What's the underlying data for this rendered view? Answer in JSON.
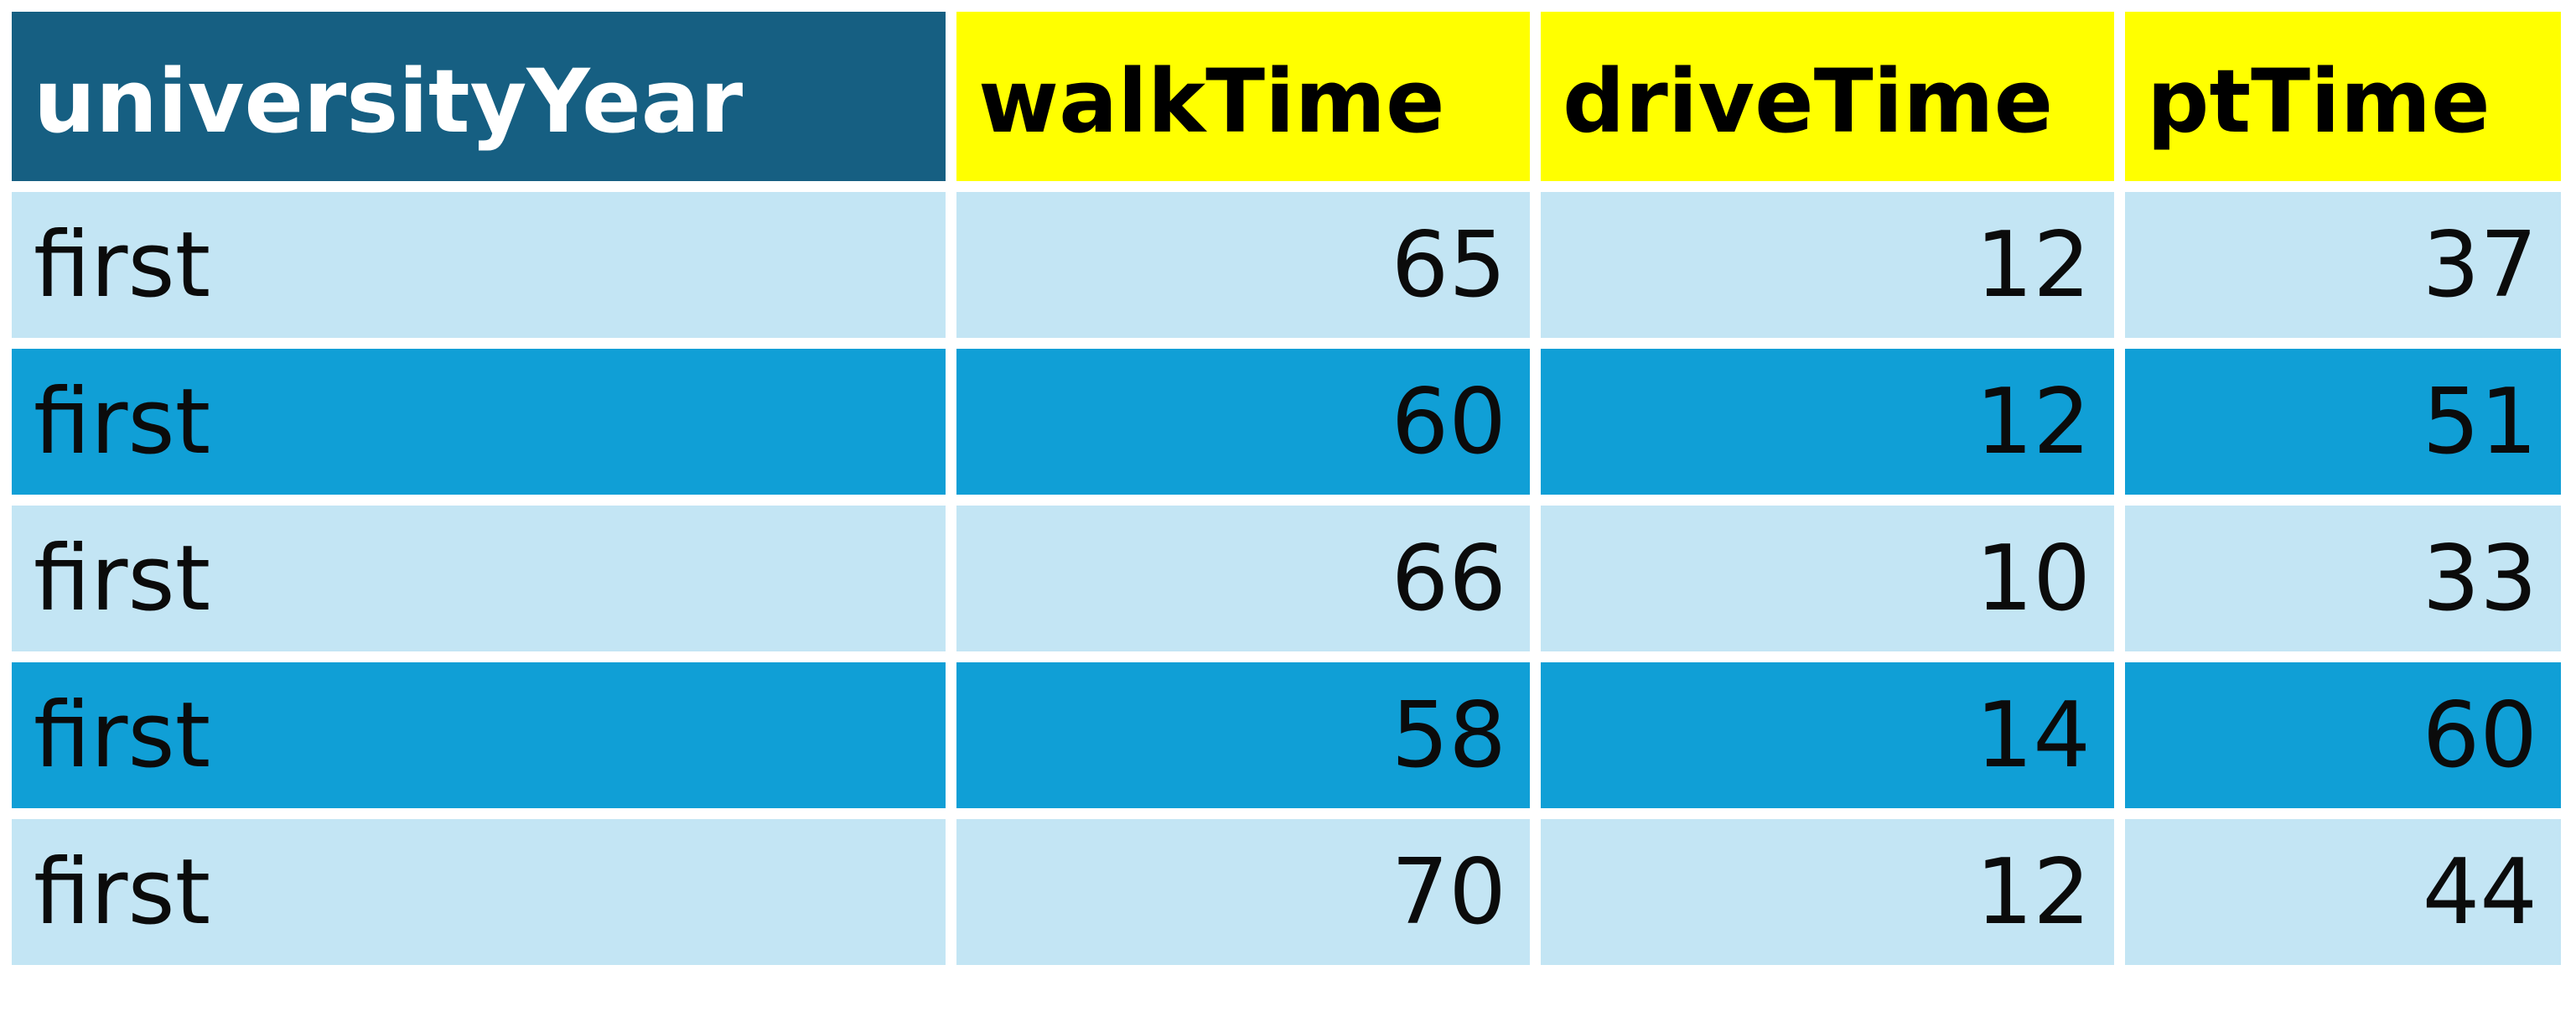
{
  "table": {
    "headers": [
      "universityYear",
      "walkTime",
      "driveTime",
      "ptTime"
    ],
    "rows": [
      [
        "first",
        "65",
        "12",
        "37"
      ],
      [
        "first",
        "60",
        "12",
        "51"
      ],
      [
        "first",
        "66",
        "10",
        "33"
      ],
      [
        "first",
        "58",
        "14",
        "60"
      ],
      [
        "first",
        "70",
        "12",
        "44"
      ]
    ]
  },
  "colors": {
    "header_first": "#165f82",
    "header_other": "#ffff00",
    "row_light": "#c3e5f4",
    "row_dark": "#109fd6"
  }
}
